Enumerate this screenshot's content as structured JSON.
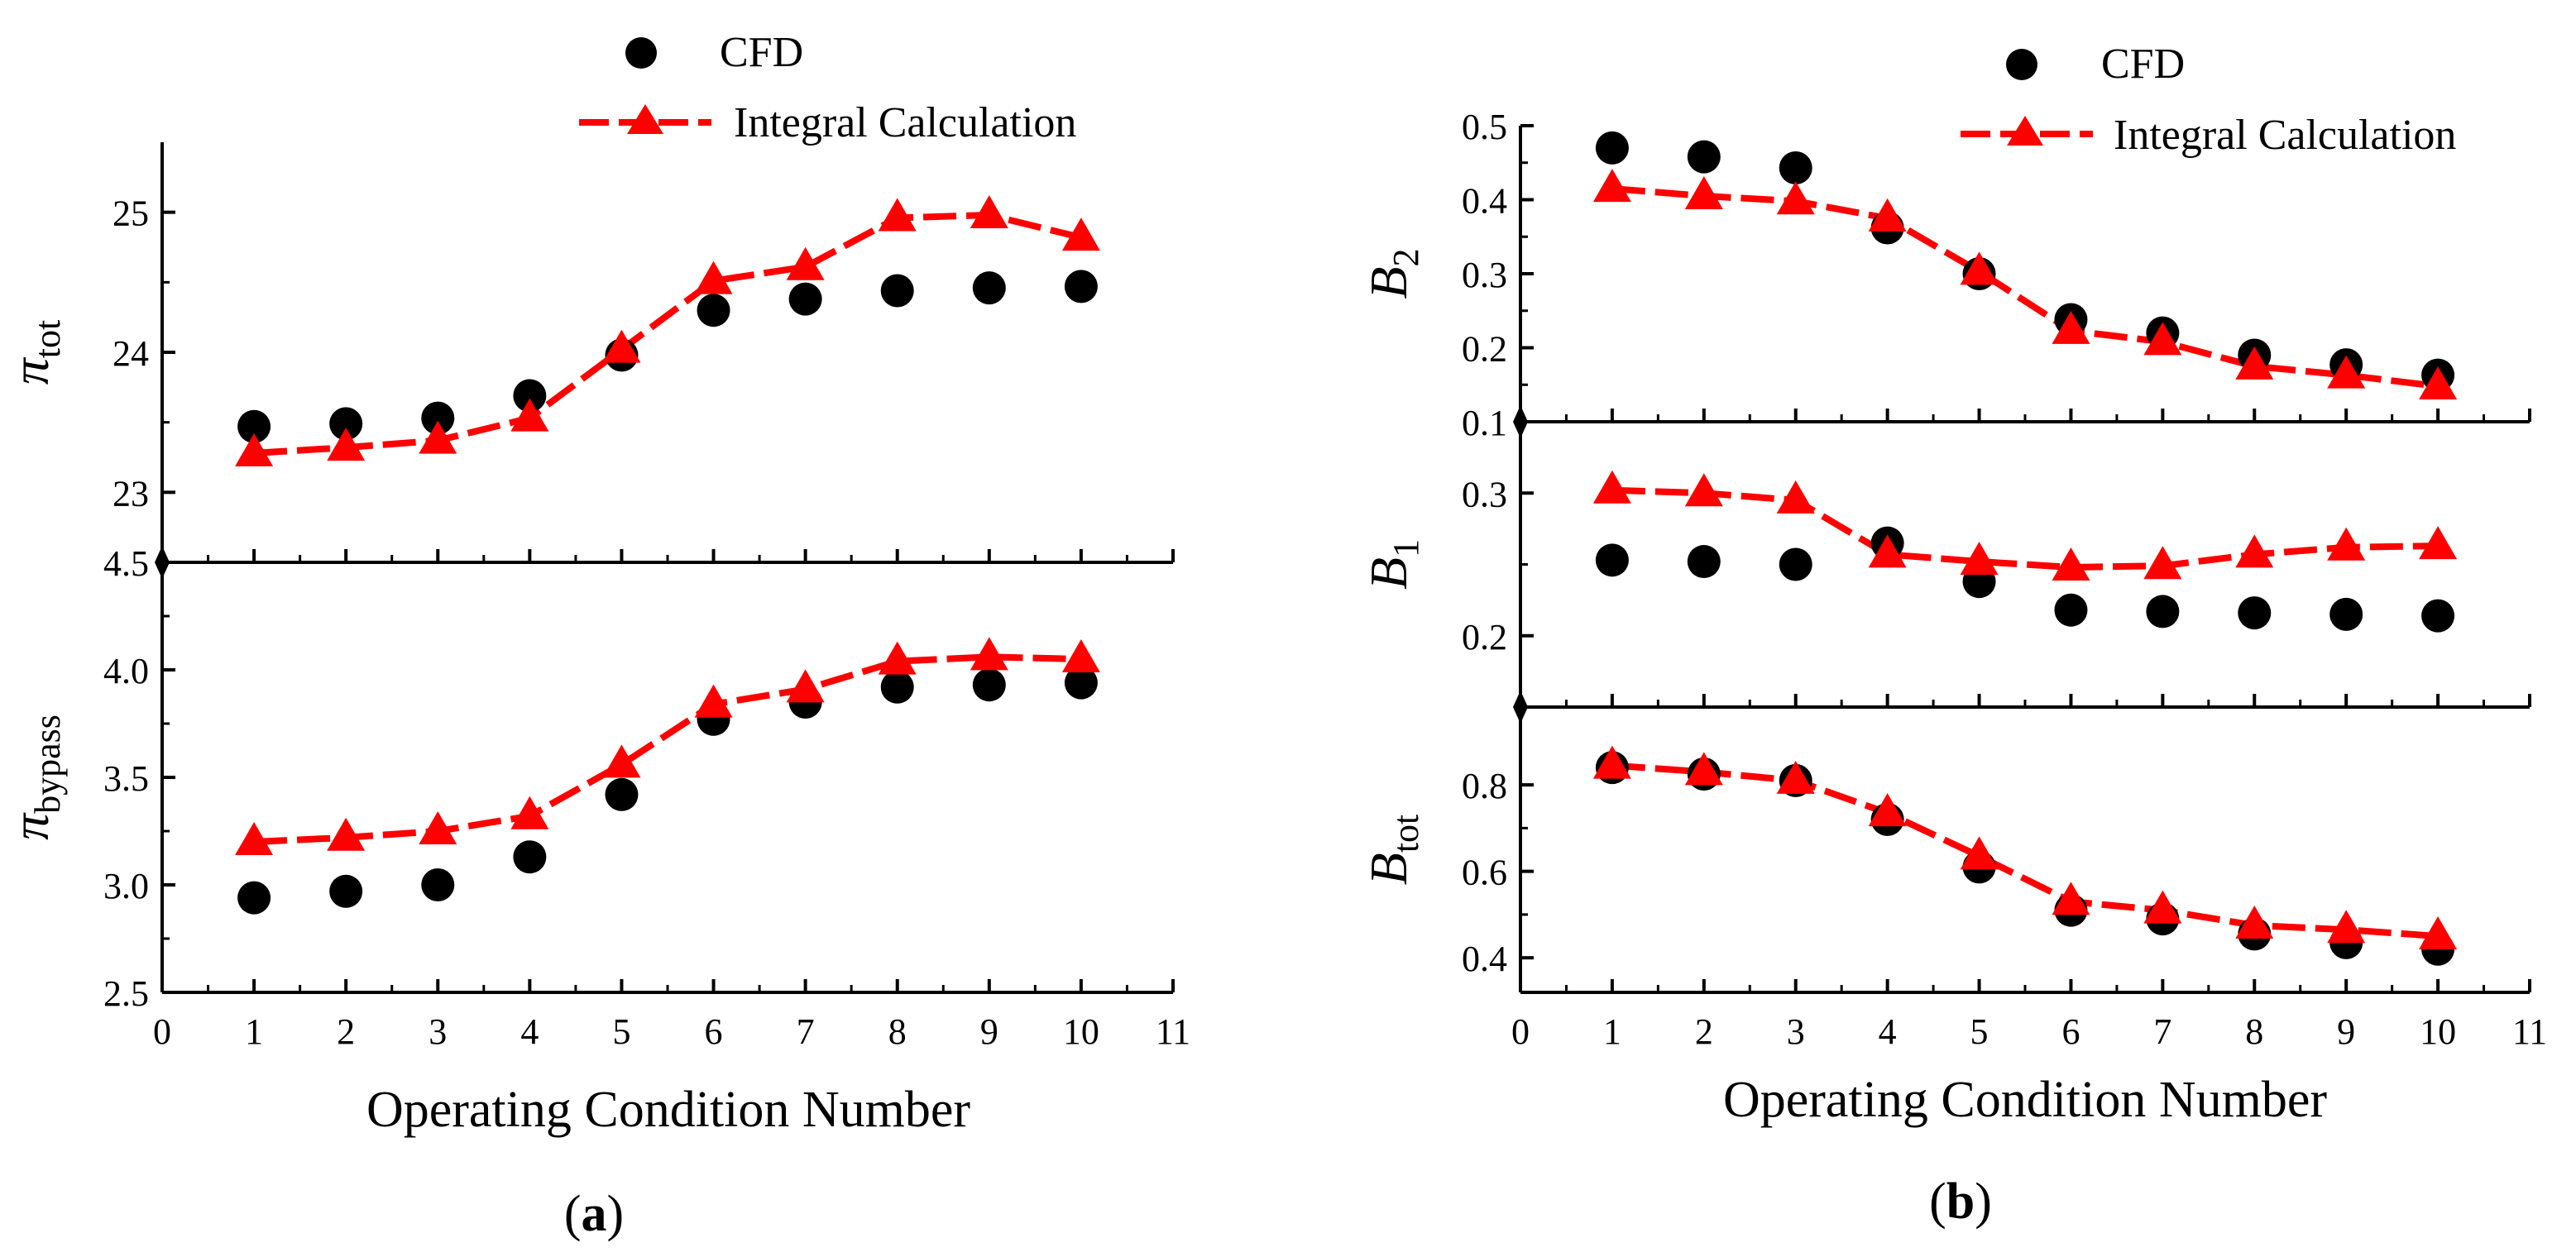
{
  "figure": {
    "xlabel": "Operating Condition Number",
    "panel_a_label": "a",
    "panel_b_label": "b",
    "legend": {
      "cfd": "CFD",
      "integral": "Integral Calculation"
    }
  },
  "colors": {
    "cfd": "#000000",
    "integral": "#ff0000",
    "axis": "#000000"
  },
  "chart_data": [
    {
      "type": "scatter",
      "panel": "a",
      "ylabel": "π",
      "ylabel_sub": "tot",
      "x": [
        1,
        2,
        3,
        4,
        5,
        6,
        7,
        8,
        9,
        10
      ],
      "xlim": [
        0,
        11
      ],
      "xticks": [
        0,
        1,
        2,
        3,
        4,
        5,
        6,
        7,
        8,
        9,
        10,
        11
      ],
      "ylim": [
        22.5,
        25.5
      ],
      "yticks": [
        23,
        24,
        25
      ],
      "series": [
        {
          "name": "CFD",
          "values": [
            23.47,
            23.49,
            23.53,
            23.69,
            23.98,
            24.3,
            24.38,
            24.44,
            24.46,
            24.47
          ]
        },
        {
          "name": "Integral Calculation",
          "values": [
            23.28,
            23.32,
            23.37,
            23.53,
            24.02,
            24.51,
            24.61,
            24.96,
            24.98,
            24.82
          ]
        }
      ]
    },
    {
      "type": "scatter",
      "panel": "a",
      "ylabel": "π",
      "ylabel_sub": "bypass",
      "x": [
        1,
        2,
        3,
        4,
        5,
        6,
        7,
        8,
        9,
        10
      ],
      "xlim": [
        0,
        11
      ],
      "xticks": [
        0,
        1,
        2,
        3,
        4,
        5,
        6,
        7,
        8,
        9,
        10,
        11
      ],
      "xlabel": "Operating Condition Number",
      "ylim": [
        2.5,
        4.5
      ],
      "yticks": [
        2.5,
        3.0,
        3.5,
        4.0,
        4.5
      ],
      "series": [
        {
          "name": "CFD",
          "values": [
            2.94,
            2.97,
            3.0,
            3.13,
            3.42,
            3.77,
            3.85,
            3.92,
            3.93,
            3.94
          ]
        },
        {
          "name": "Integral Calculation",
          "values": [
            3.2,
            3.22,
            3.25,
            3.32,
            3.56,
            3.84,
            3.91,
            4.04,
            4.06,
            4.05
          ]
        }
      ]
    },
    {
      "type": "scatter",
      "panel": "b",
      "ylabel": "B",
      "ylabel_sub": "2",
      "x": [
        1,
        2,
        3,
        4,
        5,
        6,
        7,
        8,
        9,
        10
      ],
      "xlim": [
        0,
        11
      ],
      "xticks": [
        0,
        1,
        2,
        3,
        4,
        5,
        6,
        7,
        8,
        9,
        10,
        11
      ],
      "ylim": [
        0.1,
        0.5
      ],
      "yticks": [
        0.1,
        0.2,
        0.3,
        0.4,
        0.5
      ],
      "series": [
        {
          "name": "CFD",
          "values": [
            0.47,
            0.458,
            0.443,
            0.362,
            0.3,
            0.238,
            0.22,
            0.19,
            0.177,
            0.163
          ]
        },
        {
          "name": "Integral Calculation",
          "values": [
            0.415,
            0.405,
            0.398,
            0.375,
            0.303,
            0.223,
            0.208,
            0.175,
            0.163,
            0.148
          ]
        }
      ]
    },
    {
      "type": "scatter",
      "panel": "b",
      "ylabel": "B",
      "ylabel_sub": "1",
      "x": [
        1,
        2,
        3,
        4,
        5,
        6,
        7,
        8,
        9,
        10
      ],
      "xlim": [
        0,
        11
      ],
      "xticks": [
        0,
        1,
        2,
        3,
        4,
        5,
        6,
        7,
        8,
        9,
        10,
        11
      ],
      "ylim": [
        0.15,
        0.35
      ],
      "yticks": [
        0.2,
        0.3
      ],
      "series": [
        {
          "name": "CFD",
          "values": [
            0.253,
            0.252,
            0.25,
            0.265,
            0.238,
            0.218,
            0.217,
            0.216,
            0.215,
            0.214
          ]
        },
        {
          "name": "Integral Calculation",
          "values": [
            0.302,
            0.3,
            0.295,
            0.257,
            0.252,
            0.248,
            0.249,
            0.257,
            0.262,
            0.263
          ]
        }
      ]
    },
    {
      "type": "scatter",
      "panel": "b",
      "ylabel": "B",
      "ylabel_sub": "tot",
      "x": [
        1,
        2,
        3,
        4,
        5,
        6,
        7,
        8,
        9,
        10
      ],
      "xlim": [
        0,
        11
      ],
      "xticks": [
        0,
        1,
        2,
        3,
        4,
        5,
        6,
        7,
        8,
        9,
        10,
        11
      ],
      "xlabel": "Operating Condition Number",
      "ylim": [
        0.32,
        0.98
      ],
      "yticks": [
        0.4,
        0.6,
        0.8
      ],
      "series": [
        {
          "name": "CFD",
          "values": [
            0.84,
            0.825,
            0.81,
            0.72,
            0.61,
            0.51,
            0.49,
            0.455,
            0.435,
            0.42
          ]
        },
        {
          "name": "Integral Calculation",
          "values": [
            0.845,
            0.83,
            0.81,
            0.735,
            0.635,
            0.53,
            0.51,
            0.475,
            0.465,
            0.45
          ]
        }
      ]
    }
  ]
}
